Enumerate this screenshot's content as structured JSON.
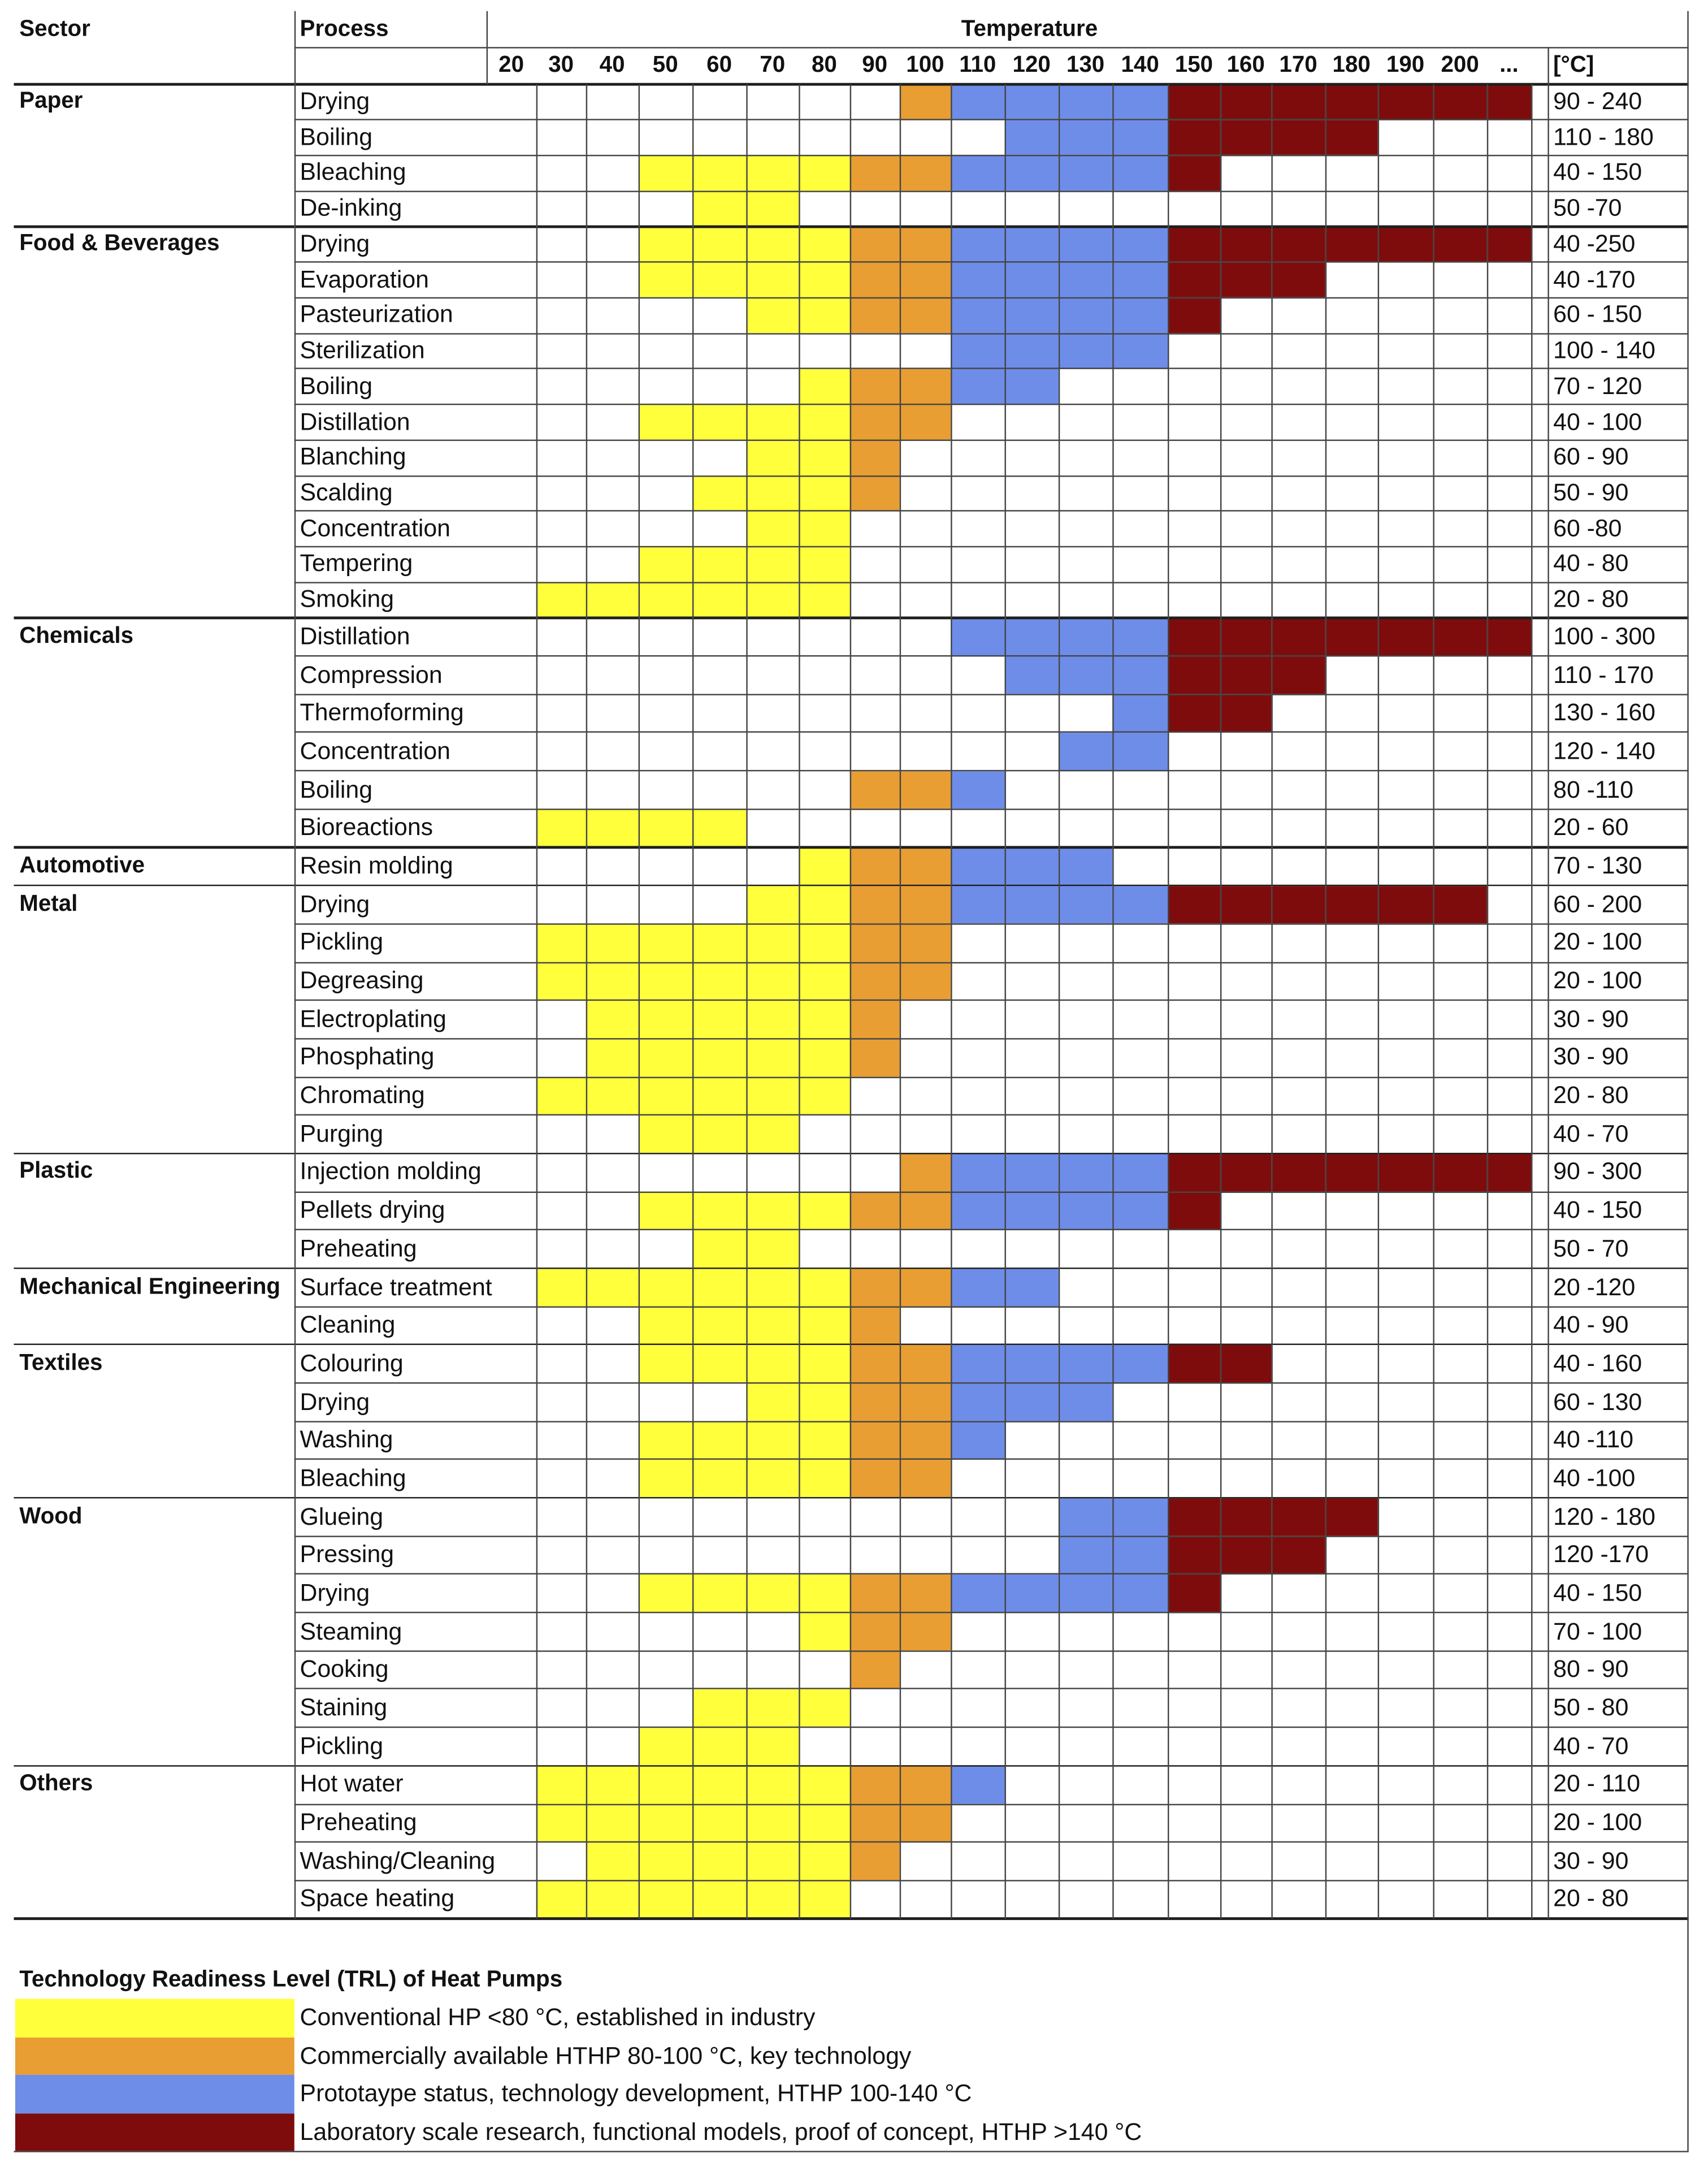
{
  "chart_data": {
    "type": "heatmap",
    "row_header": "Sector",
    "subrow_header": "Process",
    "xlabel": "Temperature",
    "range_unit": "[°C]",
    "columns": [
      "20",
      "30",
      "40",
      "50",
      "60",
      "70",
      "80",
      "90",
      "100",
      "110",
      "120",
      "130",
      "140",
      "150",
      "160",
      "170",
      "180",
      "190",
      "200",
      "..."
    ],
    "sectors": [
      {
        "name": "Paper",
        "processes": [
          {
            "name": "Drying",
            "range": "90 - 240"
          },
          {
            "name": "Boiling",
            "range": "110 - 180"
          },
          {
            "name": "Bleaching",
            "range": "40 - 150"
          },
          {
            "name": "De-inking",
            "range": "50 -70"
          }
        ]
      },
      {
        "name": "Food & Beverages",
        "processes": [
          {
            "name": "Drying",
            "range": "40 -250"
          },
          {
            "name": "Evaporation",
            "range": "40 -170"
          },
          {
            "name": "Pasteurization",
            "range": "60 - 150"
          },
          {
            "name": "Sterilization",
            "range": "100 - 140"
          },
          {
            "name": "Boiling",
            "range": "70 - 120"
          },
          {
            "name": "Distillation",
            "range": "40 - 100"
          },
          {
            "name": "Blanching",
            "range": "60 - 90"
          },
          {
            "name": "Scalding",
            "range": "50 - 90"
          },
          {
            "name": "Concentration",
            "range": "60 -80"
          },
          {
            "name": "Tempering",
            "range": "40 - 80"
          },
          {
            "name": "Smoking",
            "range": "20 - 80"
          }
        ]
      },
      {
        "name": "Chemicals",
        "processes": [
          {
            "name": "Distillation",
            "range": "100 - 300"
          },
          {
            "name": "Compression",
            "range": "110 - 170"
          },
          {
            "name": "Thermoforming",
            "range": "130 - 160"
          },
          {
            "name": "Concentration",
            "range": "120 - 140"
          },
          {
            "name": "Boiling",
            "range": "80 -110"
          },
          {
            "name": "Bioreactions",
            "range": "20 - 60"
          }
        ]
      },
      {
        "name": "Automotive",
        "processes": [
          {
            "name": "Resin molding",
            "range": "70 - 130"
          }
        ]
      },
      {
        "name": "Metal",
        "processes": [
          {
            "name": "Drying",
            "range": "60 - 200"
          },
          {
            "name": "Pickling",
            "range": "20 - 100"
          },
          {
            "name": "Degreasing",
            "range": "20 - 100"
          },
          {
            "name": "Electroplating",
            "range": "30 - 90"
          },
          {
            "name": "Phosphating",
            "range": "30 - 90"
          },
          {
            "name": "Chromating",
            "range": "20 - 80"
          },
          {
            "name": "Purging",
            "range": "40 - 70"
          }
        ]
      },
      {
        "name": "Plastic",
        "processes": [
          {
            "name": "Injection molding",
            "range": "90 - 300"
          },
          {
            "name": "Pellets drying",
            "range": "40 - 150"
          },
          {
            "name": "Preheating",
            "range": "50 - 70"
          }
        ]
      },
      {
        "name": "Mechanical Engineering",
        "processes": [
          {
            "name": "Surface treatment",
            "range": "20 -120"
          },
          {
            "name": "Cleaning",
            "range": "40 - 90"
          }
        ]
      },
      {
        "name": "Textiles",
        "processes": [
          {
            "name": "Colouring",
            "range": "40 - 160"
          },
          {
            "name": "Drying",
            "range": "60 - 130"
          },
          {
            "name": "Washing",
            "range": "40 -110"
          },
          {
            "name": "Bleaching",
            "range": "40 -100"
          }
        ]
      },
      {
        "name": "Wood",
        "processes": [
          {
            "name": "Glueing",
            "range": "120 - 180"
          },
          {
            "name": "Pressing",
            "range": "120 -170"
          },
          {
            "name": "Drying",
            "range": "40 - 150"
          },
          {
            "name": "Steaming",
            "range": "70 - 100"
          },
          {
            "name": "Cooking",
            "range": "80 - 90"
          },
          {
            "name": "Staining",
            "range": "50 - 80"
          },
          {
            "name": "Pickling",
            "range": "40 - 70"
          }
        ]
      },
      {
        "name": "Others",
        "processes": [
          {
            "name": "Hot water",
            "range": "20 - 110"
          },
          {
            "name": "Preheating",
            "range": "20 - 100"
          },
          {
            "name": "Washing/Cleaning",
            "range": "30 - 90"
          },
          {
            "name": "Space heating",
            "range": "20 - 80"
          }
        ]
      }
    ],
    "legend": {
      "title": "Technology Readiness Level (TRL) of Heat Pumps",
      "items": [
        {
          "label": "Conventional HP <80 °C, established in industry",
          "color": "#FFFF3C",
          "max_temp": 80
        },
        {
          "label": "Commercially available HTHP 80-100 °C, key technology",
          "color": "#E89E32",
          "max_temp": 100
        },
        {
          "label": "Prototaype status, technology development, HTHP 100-140 °C",
          "color": "#6E8DE9",
          "max_temp": 140
        },
        {
          "label": "Laboratory scale research, functional models, proof of concept, HTHP >140 °C",
          "color": "#7F0C0C",
          "max_temp": null
        }
      ]
    }
  }
}
